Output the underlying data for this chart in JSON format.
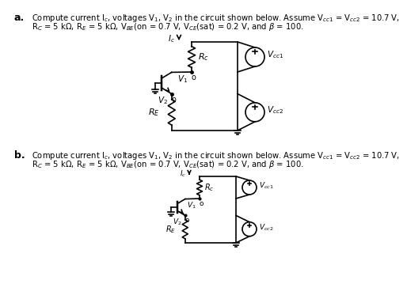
{
  "bg_color": "#ffffff",
  "text_a_line1": "Compute current I$_c$, voltages V$_1$, V$_2$ in the circuit shown below. Assume V$_{cc1}$ = V$_{cc2}$ = 10.7 V,",
  "text_a_line2": "R$_C$ = 5 k$\\Omega$, R$_E$ = 5 k$\\Omega$, V$_{BE}$(on = 0.7 V, V$_{CE}$(sat) = 0.2 V, and $\\beta$ = 100.",
  "text_b_line1": "Compute current I$_c$, voltages V$_1$, V$_2$ in the circuit shown below. Assume V$_{cc1}$ = V$_{cc2}$ = 10.7 V,",
  "text_b_line2": "R$_C$ = 5 k$\\Omega$, R$_E$ = 5 k$\\Omega$, V$_{BE}$(on = 0.7 V, V$_{CE}$(sat) = 0.2 V, and $\\beta$ = 100.",
  "label_a": "a.",
  "label_b": "b."
}
